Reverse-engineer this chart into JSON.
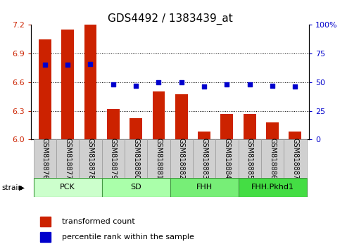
{
  "title": "GDS4492 / 1383439_at",
  "samples": [
    "GSM818876",
    "GSM818877",
    "GSM818878",
    "GSM818879",
    "GSM818880",
    "GSM818881",
    "GSM818882",
    "GSM818883",
    "GSM818884",
    "GSM818885",
    "GSM818886",
    "GSM818887"
  ],
  "bar_values": [
    7.05,
    7.15,
    7.2,
    6.32,
    6.22,
    6.5,
    6.47,
    6.08,
    6.27,
    6.27,
    6.18,
    6.08
  ],
  "percentile_values": [
    65,
    65,
    66,
    48,
    47,
    50,
    50,
    46,
    48,
    48,
    47,
    46
  ],
  "bar_color": "#cc2200",
  "percentile_color": "#0000cc",
  "ylim_left": [
    6.0,
    7.2
  ],
  "ylim_right": [
    0,
    100
  ],
  "yticks_left": [
    6.0,
    6.3,
    6.6,
    6.9,
    7.2
  ],
  "yticks_right": [
    0,
    25,
    50,
    75,
    100
  ],
  "grid_yticks": [
    6.3,
    6.6,
    6.9
  ],
  "strain_groups": [
    {
      "label": "PCK",
      "start": 0,
      "end": 3,
      "color": "#ccffcc"
    },
    {
      "label": "SD",
      "start": 3,
      "end": 6,
      "color": "#aaffaa"
    },
    {
      "label": "FHH",
      "start": 6,
      "end": 9,
      "color": "#77ee77"
    },
    {
      "label": "FHH.Pkhd1",
      "start": 9,
      "end": 12,
      "color": "#44dd44"
    }
  ],
  "strain_label": "strain",
  "legend_bar_label": "transformed count",
  "legend_pct_label": "percentile rank within the sample",
  "title_fontsize": 11,
  "tick_fontsize": 8,
  "label_fontsize": 7,
  "strain_fontsize": 8
}
